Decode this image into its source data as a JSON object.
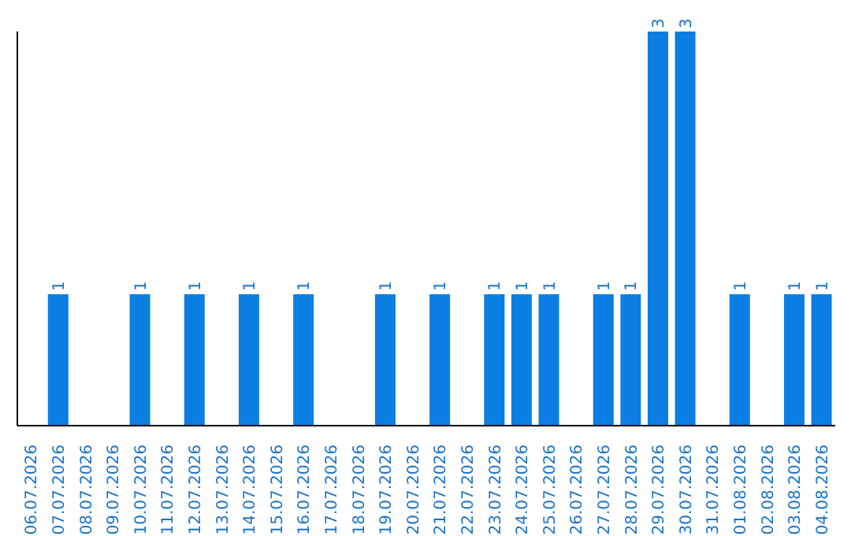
{
  "chart_data": {
    "type": "bar",
    "categories": [
      "06.07.2026",
      "07.07.2026",
      "08.07.2026",
      "09.07.2026",
      "10.07.2026",
      "11.07.2026",
      "12.07.2026",
      "13.07.2026",
      "14.07.2026",
      "15.07.2026",
      "16.07.2026",
      "17.07.2026",
      "18.07.2026",
      "19.07.2026",
      "20.07.2026",
      "21.07.2026",
      "22.07.2026",
      "23.07.2026",
      "24.07.2026",
      "25.07.2026",
      "26.07.2026",
      "27.07.2026",
      "28.07.2026",
      "29.07.2026",
      "30.07.2026",
      "31.07.2026",
      "01.08.2026",
      "02.08.2026",
      "03.08.2026",
      "04.08.2026"
    ],
    "values": [
      null,
      1,
      null,
      null,
      1,
      null,
      1,
      null,
      1,
      null,
      1,
      null,
      null,
      1,
      null,
      1,
      null,
      1,
      1,
      1,
      null,
      1,
      1,
      3,
      3,
      null,
      1,
      null,
      1,
      1
    ],
    "color": "#0a7ee3",
    "relative": false,
    "data_labels": true
  }
}
